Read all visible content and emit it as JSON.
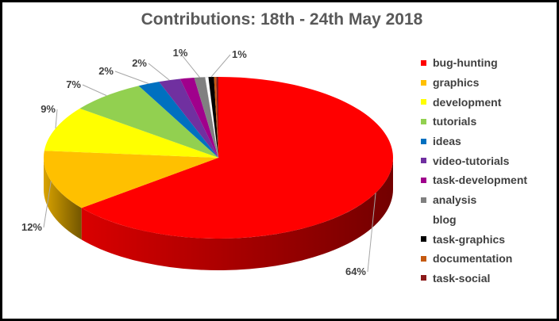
{
  "chart_data": {
    "type": "pie",
    "title": "Contributions: 18th - 24th May 2018",
    "legend_position": "right",
    "slices": [
      {
        "name": "bug-hunting",
        "value": 64,
        "label": "64%",
        "color": "#ff0000"
      },
      {
        "name": "graphics",
        "value": 12,
        "label": "12%",
        "color": "#ffc000"
      },
      {
        "name": "development",
        "value": 9,
        "label": "9%",
        "color": "#ffff00"
      },
      {
        "name": "tutorials",
        "value": 7,
        "label": "7%",
        "color": "#92d050"
      },
      {
        "name": "ideas",
        "value": 2,
        "label": "2%",
        "color": "#0070c0"
      },
      {
        "name": "video-tutorials",
        "value": 2,
        "label": "2%",
        "color": "#7030a0"
      },
      {
        "name": "task-development",
        "value": 1.3,
        "label": "",
        "color": "#a0008c"
      },
      {
        "name": "analysis",
        "value": 1,
        "label": "1%",
        "color": "#808080"
      },
      {
        "name": "blog",
        "value": 0.3,
        "label": "",
        "color": "#ffffff"
      },
      {
        "name": "task-graphics",
        "value": 0.5,
        "label": "1%",
        "color": "#000000"
      },
      {
        "name": "documentation",
        "value": 0.2,
        "label": "",
        "color": "#c55a11"
      },
      {
        "name": "task-social",
        "value": 0.2,
        "label": "",
        "color": "#8b1a1a"
      }
    ]
  }
}
